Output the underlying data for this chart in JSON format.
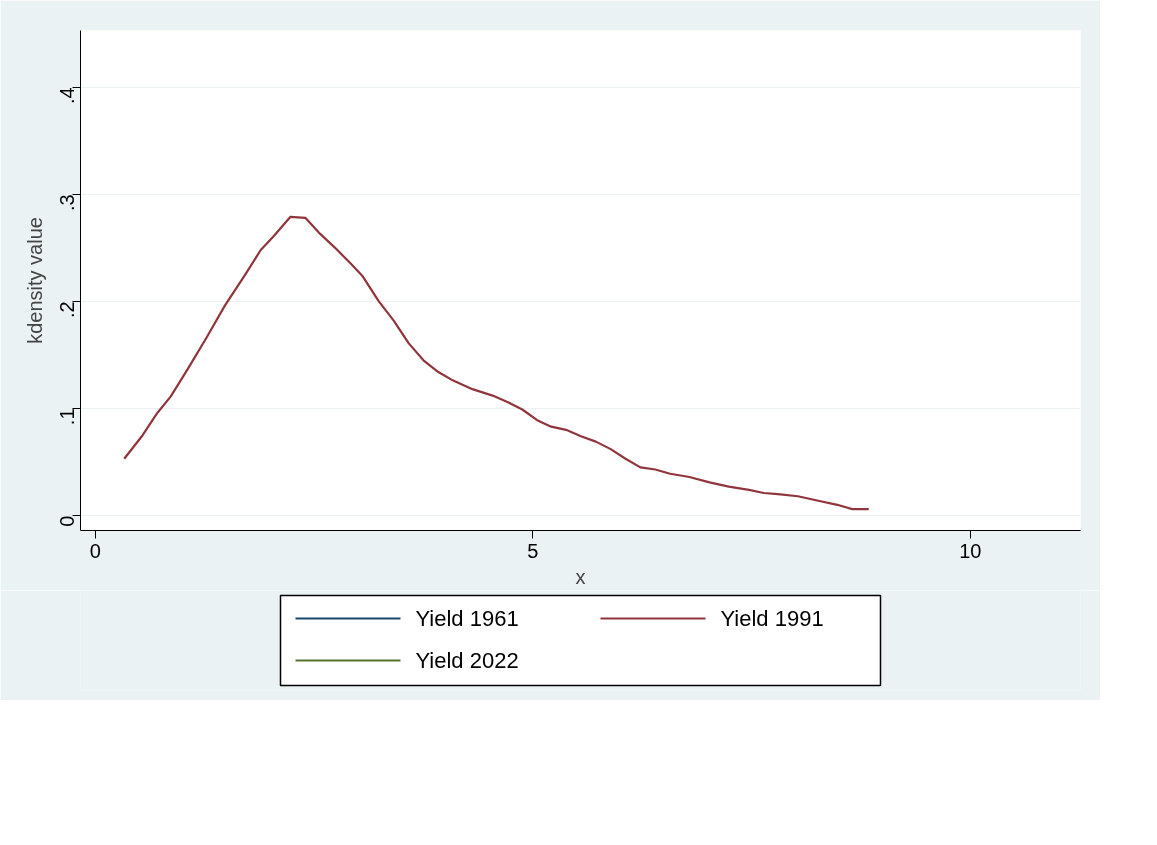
{
  "chart_data": {
    "type": "line",
    "xlabel": "x",
    "ylabel": "kdensity value",
    "xlim": [
      -0.17,
      11.26
    ],
    "ylim": [
      -0.014,
      0.453
    ],
    "xticks": [
      0,
      5,
      10
    ],
    "yticks": [
      0,
      {
        "value": 0.1,
        "label": ".1"
      },
      {
        "value": 0.2,
        "label": ".2"
      },
      {
        "value": 0.3,
        "label": ".3"
      },
      {
        "value": 0.4,
        "label": ".4"
      }
    ],
    "grid": "y",
    "legend": "bottom",
    "line_style": "solid",
    "series": [
      {
        "name": "Yield 1961",
        "color": "#1a476f"
      },
      {
        "name": "Yield 1991",
        "color": "#90353b",
        "x": [
          0.33,
          0.54,
          0.71,
          0.86,
          1.05,
          1.27,
          1.48,
          1.72,
          1.89,
          2.04,
          2.23,
          2.4,
          2.57,
          2.74,
          2.91,
          3.05,
          3.24,
          3.41,
          3.58,
          3.75,
          3.92,
          4.09,
          4.31,
          4.54,
          4.71,
          4.88,
          5.05,
          5.21,
          5.38,
          5.55,
          5.72,
          5.89,
          6.06,
          6.23,
          6.4,
          6.57,
          6.79,
          7.02,
          7.24,
          7.47,
          7.64,
          7.8,
          8.03,
          8.25,
          8.48,
          8.65,
          8.84
        ],
        "values": [
          0.053,
          0.075,
          0.096,
          0.111,
          0.136,
          0.166,
          0.196,
          0.226,
          0.248,
          0.261,
          0.279,
          0.278,
          0.263,
          0.25,
          0.236,
          0.224,
          0.2,
          0.182,
          0.161,
          0.145,
          0.134,
          0.126,
          0.118,
          0.112,
          0.106,
          0.099,
          0.089,
          0.083,
          0.08,
          0.074,
          0.069,
          0.062,
          0.053,
          0.045,
          0.043,
          0.039,
          0.036,
          0.031,
          0.027,
          0.024,
          0.021,
          0.02,
          0.018,
          0.014,
          0.01,
          0.006,
          0.006
        ]
      },
      {
        "name": "Yield 2022",
        "color": "#55752f"
      }
    ]
  }
}
